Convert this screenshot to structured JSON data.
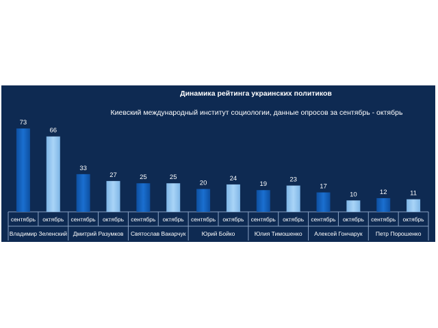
{
  "chart_data": {
    "type": "bar",
    "title": "Динамика рейтинга украинских политиков",
    "subtitle": "Киевский международный институт социологии, данные опросов за сентябрь - октябрь",
    "categories": [
      "Владимир Зеленский",
      "Дмитрий Разумков",
      "Святослав Вакарчук",
      "Юрий Бойко",
      "Юлия Тимошенко",
      "Алексей Гончарук",
      "Петр Порошенко"
    ],
    "subcategories": [
      "сентябрь",
      "октябрь"
    ],
    "values": [
      [
        73,
        66
      ],
      [
        33,
        27
      ],
      [
        25,
        25
      ],
      [
        20,
        24
      ],
      [
        19,
        23
      ],
      [
        17,
        10
      ],
      [
        12,
        11
      ]
    ],
    "colors": {
      "september": "#1a6fd0",
      "october": "#a9d4f7",
      "background": "#0e2a52",
      "grid": "#8aa2c4"
    },
    "grid": false,
    "legend": "none"
  }
}
